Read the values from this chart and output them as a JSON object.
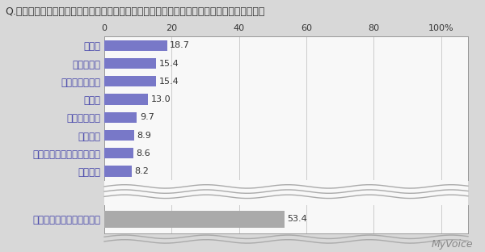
{
  "title": "Q.選択肢にあげたようなブランドで、衣類や小物などを所有しているブランドはありますか？",
  "categories": [
    "コーチ",
    "バーバリー",
    "ルイ・ヴィトン",
    "グッチ",
    "ティファニー",
    "シャネル",
    "クリスチャン・ディオール",
    "エルメス"
  ],
  "values": [
    18.7,
    15.4,
    15.4,
    13.0,
    9.7,
    8.9,
    8.6,
    8.2
  ],
  "bar_color": "#7878c8",
  "last_category": "ブランド品は持っていない",
  "last_value": 53.4,
  "last_bar_color": "#aaaaaa",
  "xlabel_ticks": [
    0,
    20,
    40,
    60,
    80,
    100
  ],
  "xlabel_last": "100%",
  "bg_color": "#d8d8d8",
  "plot_bg_color": "#f0f0f0",
  "inner_bg_color": "#f8f8f8",
  "watermark": "MyVoice",
  "xlim": [
    0,
    108
  ],
  "grid_color": "#cccccc",
  "label_color": "#4444aa",
  "value_color": "#333333",
  "wavy_color": "#aaaaaa",
  "title_color": "#333333"
}
